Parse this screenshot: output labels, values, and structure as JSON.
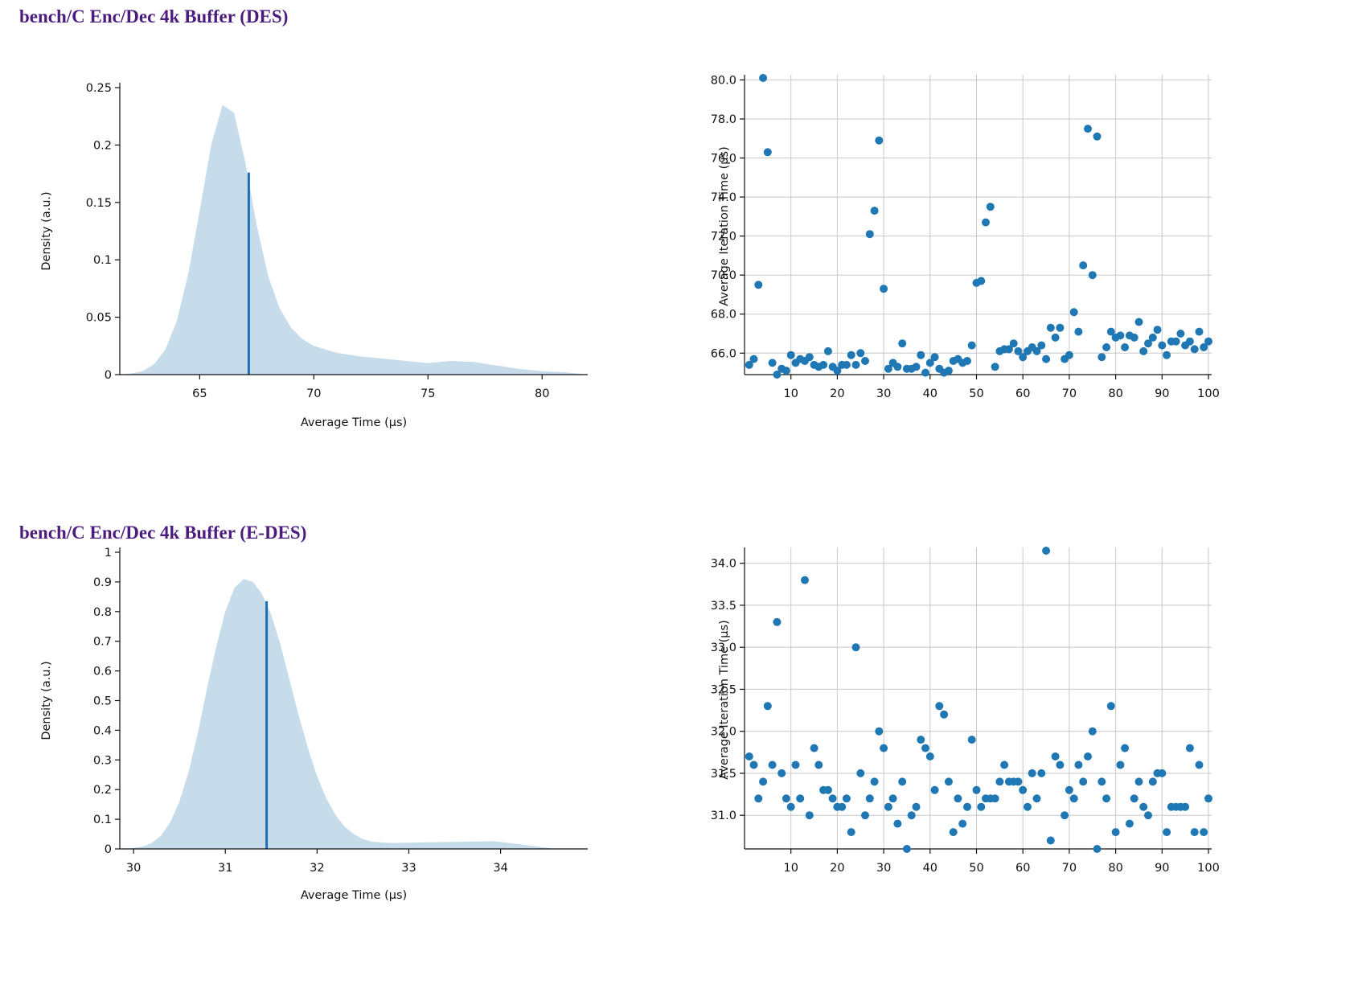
{
  "sections": [
    {
      "title": "bench/C Enc/Dec 4k Buffer (DES)",
      "density": {
        "type": "area",
        "xlabel": "Average Time (μs)",
        "ylabel": "Density (a.u.)",
        "xlim": [
          61.5,
          82.0
        ],
        "ylim": [
          0,
          0.25
        ],
        "xticks": [
          65,
          70,
          75,
          80
        ],
        "xtick_labels": [
          "65",
          "70",
          "75",
          "80"
        ],
        "yticks": [
          0,
          0.05,
          0.1,
          0.15,
          0.2,
          0.25
        ],
        "ytick_labels": [
          "0",
          "0.05",
          "0.1",
          "0.15",
          "0.2",
          "0.25"
        ],
        "fill_color": "#c6dceb",
        "marker_color": "#1f6fb4",
        "curve": [
          [
            61.5,
            0.0
          ],
          [
            62.0,
            0.001
          ],
          [
            62.5,
            0.003
          ],
          [
            63.0,
            0.009
          ],
          [
            63.5,
            0.022
          ],
          [
            64.0,
            0.047
          ],
          [
            64.5,
            0.088
          ],
          [
            65.0,
            0.143
          ],
          [
            65.5,
            0.2
          ],
          [
            66.0,
            0.235
          ],
          [
            66.5,
            0.228
          ],
          [
            67.0,
            0.185
          ],
          [
            67.5,
            0.13
          ],
          [
            68.0,
            0.086
          ],
          [
            68.5,
            0.058
          ],
          [
            69.0,
            0.041
          ],
          [
            69.5,
            0.031
          ],
          [
            70.0,
            0.025
          ],
          [
            71.0,
            0.019
          ],
          [
            72.0,
            0.016
          ],
          [
            73.0,
            0.014
          ],
          [
            74.0,
            0.012
          ],
          [
            75.0,
            0.01
          ],
          [
            76.0,
            0.012
          ],
          [
            77.0,
            0.011
          ],
          [
            78.0,
            0.008
          ],
          [
            79.0,
            0.005
          ],
          [
            80.0,
            0.003
          ],
          [
            81.0,
            0.002
          ],
          [
            82.0,
            0.0
          ]
        ],
        "mean_marker": {
          "x": 67.15,
          "y": 0.176
        }
      },
      "scatter": {
        "type": "scatter",
        "xlabel": "",
        "ylabel": "Average Iteration Time (μs)",
        "xlim": [
          0,
          100
        ],
        "ylim": [
          64.9,
          80.1
        ],
        "xticks": [
          10,
          20,
          30,
          40,
          50,
          60,
          70,
          80,
          90,
          100
        ],
        "xtick_labels": [
          "10",
          "20",
          "30",
          "40",
          "50",
          "60",
          "70",
          "80",
          "90",
          "100"
        ],
        "yticks": [
          66,
          68,
          70,
          72,
          74,
          76,
          78,
          80
        ],
        "ytick_labels": [
          "66.0",
          "68.0",
          "70.0",
          "72.0",
          "74.0",
          "76.0",
          "78.0",
          "80.0"
        ],
        "point_color": "#1f77b4",
        "values": [
          65.4,
          65.7,
          69.5,
          80.1,
          76.3,
          65.5,
          64.9,
          65.2,
          65.1,
          65.9,
          65.5,
          65.7,
          65.6,
          65.8,
          65.4,
          65.3,
          65.4,
          66.1,
          65.3,
          65.1,
          65.4,
          65.4,
          65.9,
          65.4,
          66.0,
          65.6,
          72.1,
          73.3,
          76.9,
          69.3,
          65.2,
          65.5,
          65.3,
          66.5,
          65.2,
          65.2,
          65.3,
          65.9,
          65.0,
          65.5,
          65.8,
          65.2,
          65.0,
          65.1,
          65.6,
          65.7,
          65.5,
          65.6,
          66.4,
          69.6,
          69.7,
          72.7,
          73.5,
          65.3,
          66.1,
          66.2,
          66.2,
          66.5,
          66.1,
          65.8,
          66.1,
          66.3,
          66.1,
          66.4,
          65.7,
          67.3,
          66.8,
          67.3,
          65.7,
          65.9,
          68.1,
          67.1,
          70.5,
          77.5,
          70.0,
          77.1,
          65.8,
          66.3,
          67.1,
          66.8,
          66.9,
          66.3,
          66.9,
          66.8,
          67.6,
          66.1,
          66.5,
          66.8,
          67.2,
          66.4,
          65.9,
          66.6,
          66.6,
          67.0,
          66.4,
          66.6,
          66.2,
          67.1,
          66.3,
          66.6
        ]
      }
    },
    {
      "title": "bench/C Enc/Dec 4k Buffer (E-DES)",
      "density": {
        "type": "area",
        "xlabel": "Average Time (μs)",
        "ylabel": "Density (a.u.)",
        "xlim": [
          29.85,
          34.95
        ],
        "ylim": [
          0,
          1.0
        ],
        "xticks": [
          30,
          31,
          32,
          33,
          34
        ],
        "xtick_labels": [
          "30",
          "31",
          "32",
          "33",
          "34"
        ],
        "yticks": [
          0,
          0.1,
          0.2,
          0.3,
          0.4,
          0.5,
          0.6,
          0.7,
          0.8,
          0.9,
          1.0
        ],
        "ytick_labels": [
          "0",
          "0.1",
          "0.2",
          "0.3",
          "0.4",
          "0.5",
          "0.6",
          "0.7",
          "0.8",
          "0.9",
          "1"
        ],
        "fill_color": "#c6dceb",
        "marker_color": "#1f6fb4",
        "curve": [
          [
            29.9,
            0.0
          ],
          [
            30.0,
            0.003
          ],
          [
            30.1,
            0.008
          ],
          [
            30.2,
            0.02
          ],
          [
            30.3,
            0.045
          ],
          [
            30.4,
            0.09
          ],
          [
            30.5,
            0.16
          ],
          [
            30.6,
            0.26
          ],
          [
            30.7,
            0.39
          ],
          [
            30.8,
            0.54
          ],
          [
            30.9,
            0.68
          ],
          [
            31.0,
            0.8
          ],
          [
            31.1,
            0.88
          ],
          [
            31.2,
            0.91
          ],
          [
            31.3,
            0.9
          ],
          [
            31.4,
            0.86
          ],
          [
            31.5,
            0.79
          ],
          [
            31.6,
            0.69
          ],
          [
            31.7,
            0.57
          ],
          [
            31.8,
            0.45
          ],
          [
            31.9,
            0.34
          ],
          [
            32.0,
            0.245
          ],
          [
            32.1,
            0.17
          ],
          [
            32.2,
            0.115
          ],
          [
            32.3,
            0.075
          ],
          [
            32.4,
            0.05
          ],
          [
            32.5,
            0.033
          ],
          [
            32.6,
            0.024
          ],
          [
            32.8,
            0.02
          ],
          [
            33.2,
            0.022
          ],
          [
            33.6,
            0.024
          ],
          [
            33.9,
            0.026
          ],
          [
            34.1,
            0.02
          ],
          [
            34.3,
            0.012
          ],
          [
            34.5,
            0.004
          ],
          [
            34.6,
            0.0
          ]
        ],
        "mean_marker": {
          "x": 31.45,
          "y": 0.835
        }
      },
      "scatter": {
        "type": "scatter",
        "xlabel": "",
        "ylabel": "Average Iteration Time (μs)",
        "xlim": [
          0,
          100
        ],
        "ylim": [
          30.6,
          34.15
        ],
        "xticks": [
          10,
          20,
          30,
          40,
          50,
          60,
          70,
          80,
          90,
          100
        ],
        "xtick_labels": [
          "10",
          "20",
          "30",
          "40",
          "50",
          "60",
          "70",
          "80",
          "90",
          "100"
        ],
        "yticks": [
          31.0,
          31.5,
          32.0,
          32.5,
          33.0,
          33.5,
          34.0
        ],
        "ytick_labels": [
          "31.0",
          "31.5",
          "32.0",
          "32.5",
          "33.0",
          "33.5",
          "34.0"
        ],
        "point_color": "#1f77b4",
        "values": [
          31.7,
          31.6,
          31.2,
          31.4,
          32.3,
          31.6,
          33.3,
          31.5,
          31.2,
          31.1,
          31.6,
          31.2,
          33.8,
          31.0,
          31.8,
          31.6,
          31.3,
          31.3,
          31.2,
          31.1,
          31.1,
          31.2,
          30.8,
          33.0,
          31.5,
          31.0,
          31.2,
          31.4,
          32.0,
          31.8,
          31.1,
          31.2,
          30.9,
          31.4,
          30.6,
          31.0,
          31.1,
          31.9,
          31.8,
          31.7,
          31.3,
          32.3,
          32.2,
          31.4,
          30.8,
          31.2,
          30.9,
          31.1,
          31.9,
          31.3,
          31.1,
          31.2,
          31.2,
          31.2,
          31.4,
          31.6,
          31.4,
          31.4,
          31.4,
          31.3,
          31.1,
          31.5,
          31.2,
          31.5,
          34.15,
          30.7,
          31.7,
          31.6,
          31.0,
          31.3,
          31.2,
          31.6,
          31.4,
          31.7,
          32.0,
          30.6,
          31.4,
          31.2,
          32.3,
          30.8,
          31.6,
          31.8,
          30.9,
          31.2,
          31.4,
          31.1,
          31.0,
          31.4,
          31.5,
          31.5,
          30.8,
          31.1,
          31.1,
          31.1,
          31.1,
          31.8,
          30.8,
          31.6,
          30.8,
          31.2
        ]
      }
    }
  ]
}
